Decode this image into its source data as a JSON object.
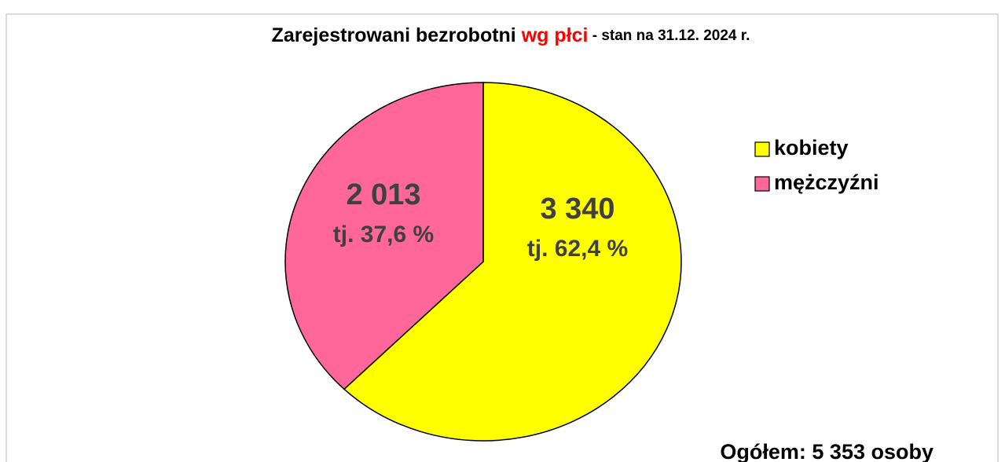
{
  "chart_data": {
    "type": "pie",
    "title": [
      "Zarejestrowani bezrobotni ",
      "wg płci",
      " - stan na 31.12. 2024 r."
    ],
    "title_colors": [
      "#000000",
      "#ff0000",
      "#000000"
    ],
    "categories": [
      "kobiety",
      "mężczyźni"
    ],
    "values": [
      3340,
      2013
    ],
    "value_labels": [
      "3 340",
      "2 013"
    ],
    "percent_labels": [
      "tj. 62,4 %",
      "tj. 37,6 %"
    ],
    "colors": [
      "#ffff00",
      "#ff6699"
    ],
    "annotation": "Ogółem:  5 353 osoby",
    "legend": "right"
  }
}
